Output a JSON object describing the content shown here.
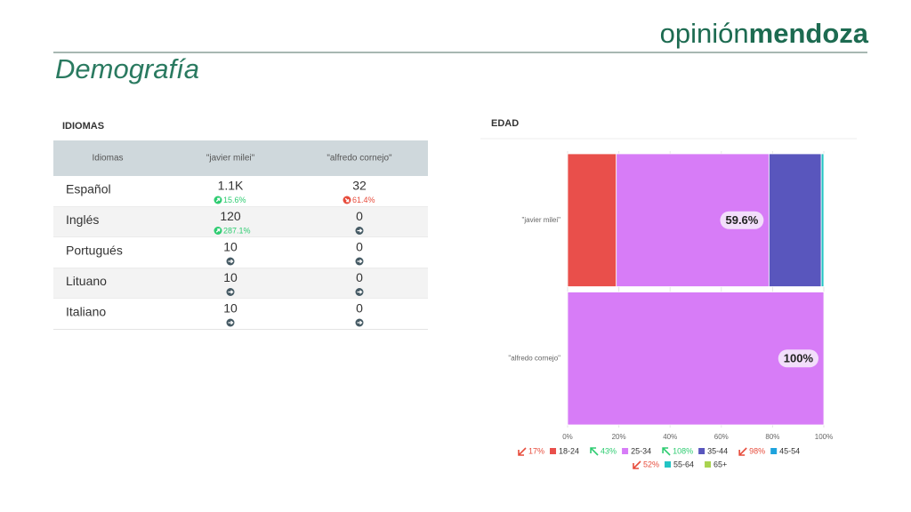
{
  "header": {
    "brand_light": "opinión",
    "brand_bold": "mendoza",
    "title": "Demografía"
  },
  "table": {
    "title": "IDIOMAS",
    "columns": [
      "Idiomas",
      "\"javier milei\"",
      "\"alfredo cornejo\""
    ],
    "rows": [
      {
        "label": "Español",
        "cells": [
          {
            "value": "1.1K",
            "change": "15.6%",
            "trend": "up"
          },
          {
            "value": "32",
            "change": "61.4%",
            "trend": "down"
          }
        ]
      },
      {
        "label": "Inglés",
        "cells": [
          {
            "value": "120",
            "change": "287.1%",
            "trend": "up"
          },
          {
            "value": "0",
            "trend": "flat"
          }
        ]
      },
      {
        "label": "Portugués",
        "cells": [
          {
            "value": "10",
            "trend": "flat"
          },
          {
            "value": "0",
            "trend": "flat"
          }
        ]
      },
      {
        "label": "Lituano",
        "cells": [
          {
            "value": "10",
            "trend": "flat"
          },
          {
            "value": "0",
            "trend": "flat"
          }
        ]
      },
      {
        "label": "Italiano",
        "cells": [
          {
            "value": "10",
            "trend": "flat"
          },
          {
            "value": "0",
            "trend": "flat"
          }
        ]
      }
    ]
  },
  "chart_data": {
    "type": "stacked_barh",
    "title": "EDAD",
    "categories": [
      "\"javier milei\"",
      "\"alfredo cornejo\""
    ],
    "series": [
      {
        "name": "18-24",
        "color": "#e94f4b",
        "values": [
          19,
          0
        ],
        "change": "17%",
        "trend": "down"
      },
      {
        "name": "25-34",
        "color": "#d77cf7",
        "values": [
          59.6,
          100
        ],
        "value_labels": [
          "59.6%",
          "100%"
        ],
        "change": "43%",
        "trend": "up"
      },
      {
        "name": "35-44",
        "color": "#5956bd",
        "values": [
          20.4,
          0
        ],
        "change": "108%",
        "trend": "up"
      },
      {
        "name": "45-54",
        "color": "#1ea3dd",
        "values": [
          0,
          0
        ],
        "change": "98%",
        "trend": "down"
      },
      {
        "name": "55-64",
        "color": "#22c4c4",
        "values": [
          1,
          0
        ],
        "change": "52%",
        "trend": "down"
      },
      {
        "name": "65+",
        "color": "#a9d34f",
        "values": [
          0,
          0
        ]
      }
    ],
    "xlim": [
      0,
      100
    ],
    "xticks": [
      {
        "value": 0,
        "label": "0%"
      },
      {
        "value": 20,
        "label": "20%"
      },
      {
        "value": 40,
        "label": "40%"
      },
      {
        "value": 60,
        "label": "60%"
      },
      {
        "value": 80,
        "label": "80%"
      },
      {
        "value": 100,
        "label": "100%"
      }
    ],
    "grid": true
  }
}
